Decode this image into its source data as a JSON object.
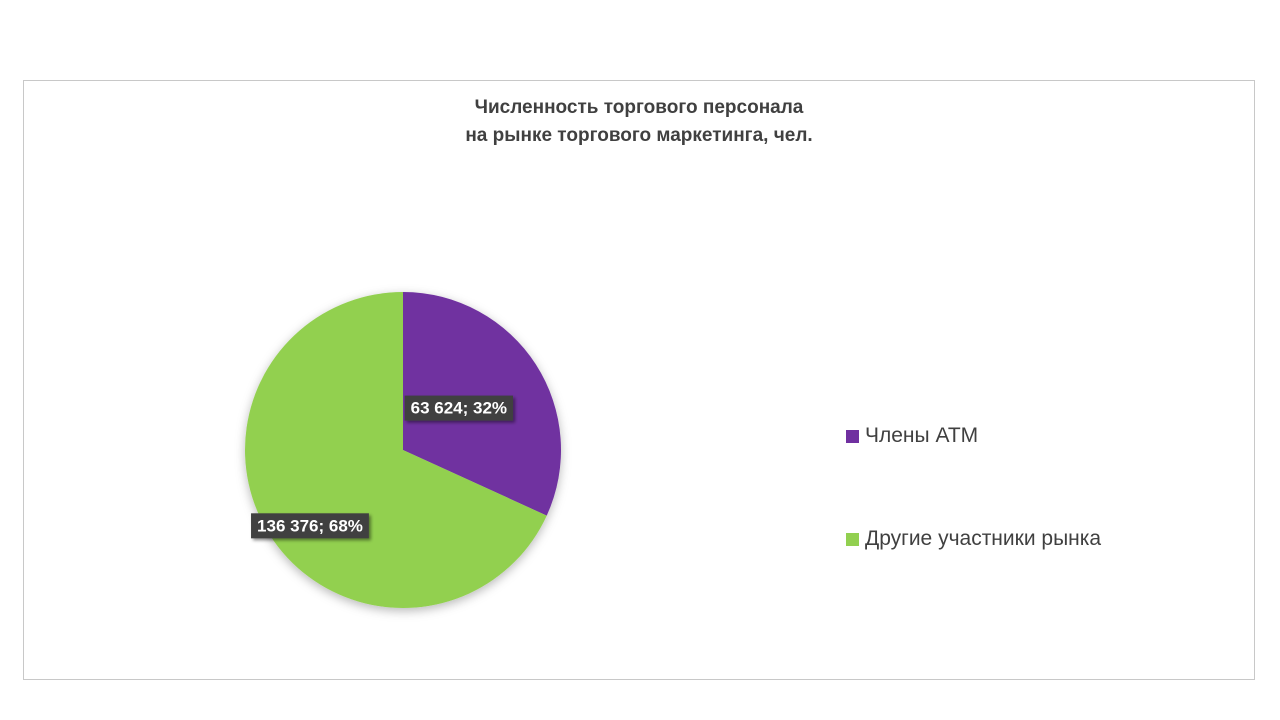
{
  "chart_data": {
    "type": "pie",
    "title_lines": [
      "Численность торгового персонала",
      "на рынке торгового маркетинга, чел."
    ],
    "slices": [
      {
        "name": "Члены АТМ",
        "value": 63624,
        "percent": 32,
        "label": "63 624; 32%",
        "color": "#7030a0"
      },
      {
        "name": "Другие участники рынка",
        "value": 136376,
        "percent": 68,
        "label": "136 376; 68%",
        "color": "#92d050"
      }
    ],
    "legend": "right",
    "label_style": {
      "background": "#404040",
      "color": "#ffffff"
    }
  }
}
